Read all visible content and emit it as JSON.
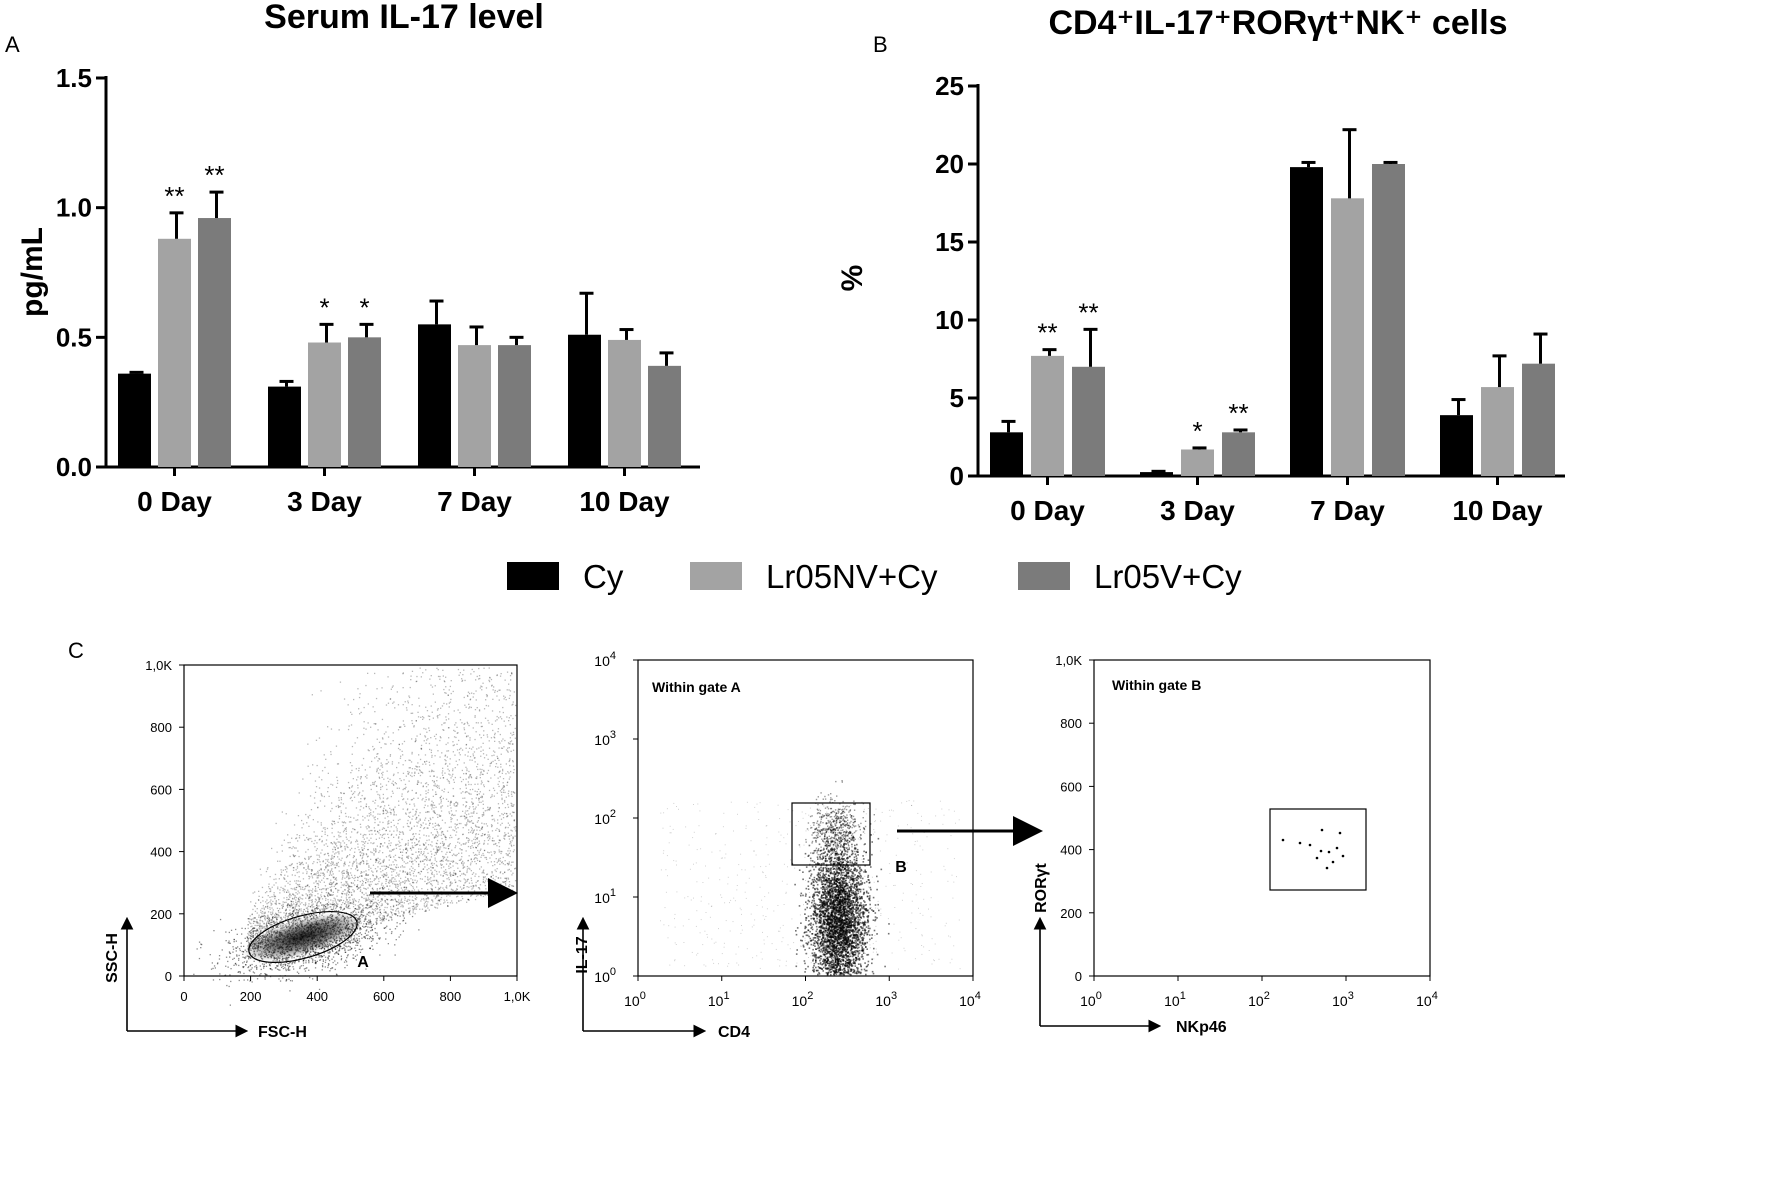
{
  "panel_letters": {
    "a": "A",
    "b": "B",
    "c": "C"
  },
  "colors": {
    "cy": "#000000",
    "lr05nv": "#a3a3a3",
    "lr05v": "#7b7b7b"
  },
  "legend": [
    {
      "label": "Cy",
      "color": "#000000"
    },
    {
      "label": "Lr05NV+Cy",
      "color": "#a3a3a3"
    },
    {
      "label": "Lr05V+Cy",
      "color": "#7b7b7b"
    }
  ],
  "chart_data": [
    {
      "type": "bar",
      "title": "Serum IL-17 level",
      "xlabel": "",
      "ylabel": "pg/mL",
      "ylim": [
        0,
        1.5
      ],
      "yticks": [
        "0.0",
        "0.5",
        "1.0",
        "1.5"
      ],
      "categories": [
        "0 Day",
        "3 Day",
        "7 Day",
        "10 Day"
      ],
      "series": [
        {
          "name": "Cy",
          "values": [
            0.36,
            0.31,
            0.55,
            0.51
          ],
          "errors": [
            0.005,
            0.02,
            0.09,
            0.16
          ],
          "sig": [
            "",
            "",
            "",
            ""
          ]
        },
        {
          "name": "Lr05NV+Cy",
          "values": [
            0.88,
            0.48,
            0.47,
            0.49
          ],
          "errors": [
            0.1,
            0.07,
            0.07,
            0.04
          ],
          "sig": [
            "**",
            "*",
            "",
            ""
          ]
        },
        {
          "name": "Lr05V+Cy",
          "values": [
            0.96,
            0.5,
            0.47,
            0.39
          ],
          "errors": [
            0.1,
            0.05,
            0.03,
            0.05
          ],
          "sig": [
            "**",
            "*",
            "",
            ""
          ]
        }
      ]
    },
    {
      "type": "bar",
      "title": "CD4⁺IL-17⁺RORγt⁺NK⁺ cells",
      "xlabel": "",
      "ylabel": "%",
      "ylim": [
        0,
        25
      ],
      "yticks": [
        "0",
        "5",
        "10",
        "15",
        "20",
        "25"
      ],
      "categories": [
        "0 Day",
        "3 Day",
        "7 Day",
        "10 Day"
      ],
      "series": [
        {
          "name": "Cy",
          "values": [
            2.8,
            0.25,
            19.8,
            3.9
          ],
          "errors": [
            0.7,
            0.05,
            0.3,
            1.0
          ],
          "sig": [
            "",
            "",
            "",
            ""
          ]
        },
        {
          "name": "Lr05NV+Cy",
          "values": [
            7.7,
            1.7,
            17.8,
            5.7
          ],
          "errors": [
            0.4,
            0.1,
            4.4,
            2.0
          ],
          "sig": [
            "**",
            "*",
            "",
            ""
          ]
        },
        {
          "name": "Lr05V+Cy",
          "values": [
            7.0,
            2.8,
            20.0,
            7.2
          ],
          "errors": [
            2.4,
            0.15,
            0.1,
            1.9
          ],
          "sig": [
            "**",
            "**",
            "",
            ""
          ]
        }
      ]
    },
    {
      "type": "scatter",
      "title": "",
      "xlabel": "FSC-H",
      "ylabel": "SSC-H",
      "xticks": [
        "0",
        "200",
        "400",
        "600",
        "800",
        "1,0K"
      ],
      "yticks": [
        "0",
        "200",
        "400",
        "600",
        "800",
        "1,0K"
      ],
      "gate_label": "A"
    },
    {
      "type": "scatter",
      "title": "Within gate A",
      "xlabel": "CD4",
      "ylabel": "IL-17",
      "xticks_exp": [
        "0",
        "1",
        "2",
        "3",
        "4"
      ],
      "yticks_exp": [
        "0",
        "1",
        "2",
        "3",
        "4"
      ],
      "tick_base": "10",
      "gate_label": "B"
    },
    {
      "type": "scatter",
      "title": "Within gate B",
      "xlabel": "NKp46",
      "ylabel": "RORγt",
      "xticks_exp": [
        "0",
        "1",
        "2",
        "3",
        "4"
      ],
      "tick_base": "10",
      "yticks": [
        "0",
        "200",
        "400",
        "600",
        "800",
        "1,0K"
      ]
    }
  ]
}
